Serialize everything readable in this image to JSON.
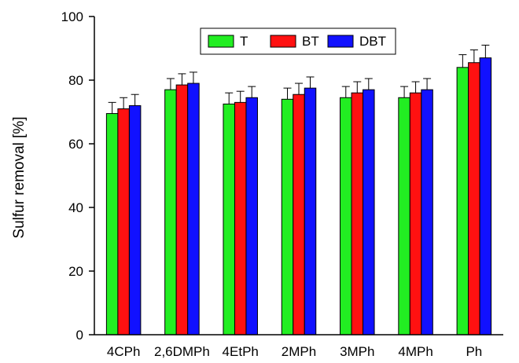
{
  "chart_data": {
    "type": "bar",
    "title": "",
    "xlabel": "",
    "ylabel": "Sulfur removal [%]",
    "ylim": [
      0,
      100
    ],
    "yticks": [
      0,
      20,
      40,
      60,
      80,
      100
    ],
    "grid": false,
    "legend_position": "top-center",
    "categories": [
      "4CPh",
      "2,6DMPh",
      "4EtPh",
      "2MPh",
      "3MPh",
      "4MPh",
      "Ph"
    ],
    "series": [
      {
        "name": "T",
        "color": "#22ee22",
        "values": [
          69.5,
          77.0,
          72.5,
          74.0,
          74.5,
          74.5,
          84.0
        ],
        "errors": [
          3.5,
          3.5,
          3.5,
          3.5,
          3.5,
          3.5,
          4.0
        ]
      },
      {
        "name": "BT",
        "color": "#ff1111",
        "values": [
          71.0,
          78.5,
          73.0,
          75.5,
          76.0,
          76.0,
          85.5
        ],
        "errors": [
          3.5,
          3.5,
          3.5,
          3.5,
          3.5,
          3.5,
          4.0
        ]
      },
      {
        "name": "DBT",
        "color": "#1111ff",
        "values": [
          72.0,
          79.0,
          74.5,
          77.5,
          77.0,
          77.0,
          87.0
        ],
        "errors": [
          3.5,
          3.5,
          3.5,
          3.5,
          3.5,
          3.5,
          4.0
        ]
      }
    ]
  }
}
